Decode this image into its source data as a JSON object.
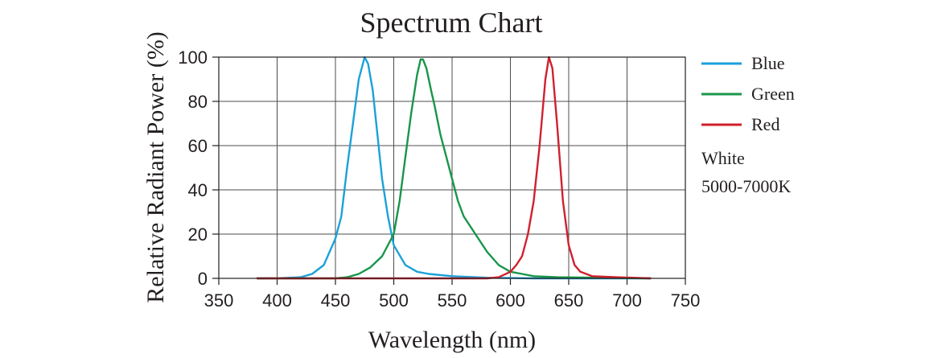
{
  "chart_data": {
    "type": "line",
    "title": "Spectrum Chart",
    "xlabel": "Wavelength (nm)",
    "ylabel": "Relative Radiant Power (%)",
    "xlim": [
      350,
      750
    ],
    "ylim": [
      0,
      100
    ],
    "xticks": [
      350,
      400,
      450,
      500,
      550,
      600,
      650,
      700,
      750
    ],
    "yticks": [
      0,
      20,
      40,
      60,
      80,
      100
    ],
    "grid": true,
    "legend_position": "right",
    "series": [
      {
        "name": "Blue",
        "color": "#1ba1d8",
        "points": [
          [
            383,
            0
          ],
          [
            400,
            0
          ],
          [
            420,
            0.5
          ],
          [
            430,
            2
          ],
          [
            440,
            6
          ],
          [
            450,
            18
          ],
          [
            455,
            28
          ],
          [
            460,
            50
          ],
          [
            465,
            70
          ],
          [
            470,
            90
          ],
          [
            475,
            100
          ],
          [
            478,
            97
          ],
          [
            482,
            85
          ],
          [
            486,
            65
          ],
          [
            490,
            45
          ],
          [
            495,
            28
          ],
          [
            500,
            15
          ],
          [
            510,
            6
          ],
          [
            520,
            3
          ],
          [
            530,
            2
          ],
          [
            550,
            1
          ],
          [
            580,
            0.3
          ],
          [
            620,
            0
          ],
          [
            720,
            0
          ]
        ]
      },
      {
        "name": "Green",
        "color": "#18964a",
        "points": [
          [
            383,
            0
          ],
          [
            450,
            0
          ],
          [
            460,
            0.5
          ],
          [
            470,
            2
          ],
          [
            480,
            5
          ],
          [
            490,
            10
          ],
          [
            500,
            20
          ],
          [
            505,
            35
          ],
          [
            510,
            55
          ],
          [
            515,
            75
          ],
          [
            520,
            92
          ],
          [
            523,
            99
          ],
          [
            525,
            99
          ],
          [
            528,
            95
          ],
          [
            532,
            85
          ],
          [
            535,
            78
          ],
          [
            540,
            65
          ],
          [
            545,
            55
          ],
          [
            550,
            45
          ],
          [
            555,
            35
          ],
          [
            560,
            28
          ],
          [
            570,
            20
          ],
          [
            580,
            12
          ],
          [
            590,
            6
          ],
          [
            600,
            3
          ],
          [
            610,
            2
          ],
          [
            620,
            1
          ],
          [
            640,
            0.5
          ],
          [
            720,
            0
          ]
        ]
      },
      {
        "name": "Red",
        "color": "#d0202e",
        "points": [
          [
            383,
            0
          ],
          [
            580,
            0
          ],
          [
            590,
            0.5
          ],
          [
            600,
            3
          ],
          [
            605,
            6
          ],
          [
            610,
            10
          ],
          [
            615,
            20
          ],
          [
            620,
            35
          ],
          [
            625,
            60
          ],
          [
            630,
            90
          ],
          [
            633,
            100
          ],
          [
            636,
            95
          ],
          [
            640,
            70
          ],
          [
            645,
            35
          ],
          [
            650,
            15
          ],
          [
            655,
            6
          ],
          [
            660,
            3
          ],
          [
            670,
            1
          ],
          [
            690,
            0.5
          ],
          [
            720,
            0
          ]
        ]
      }
    ],
    "annotation": [
      "White",
      "5000-7000K"
    ]
  }
}
